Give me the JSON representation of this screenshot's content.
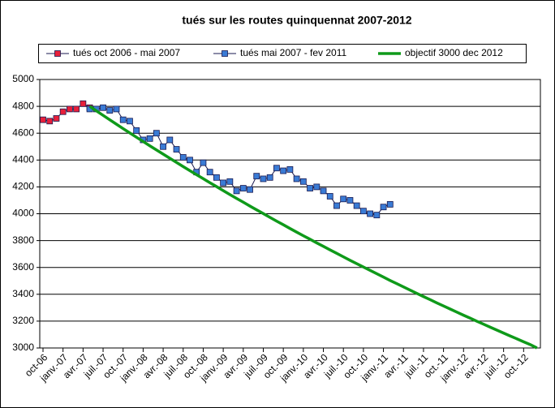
{
  "chart_data": {
    "type": "line",
    "title": "tués sur les routes  quinquennat 2007-2012",
    "categories": [
      "oct-06",
      null,
      null,
      "janv.-07",
      null,
      null,
      "avr.-07",
      null,
      null,
      "juil.-07",
      null,
      null,
      "oct.-07",
      null,
      null,
      "janv.-08",
      null,
      null,
      "avr.-08",
      null,
      null,
      "juil.-08",
      null,
      null,
      "oct.-08",
      null,
      null,
      "janv.-09",
      null,
      null,
      "avr.-09",
      null,
      null,
      "juil.-09",
      null,
      null,
      "oct.-09",
      null,
      null,
      "janv.-10",
      null,
      null,
      "avr.-10",
      null,
      null,
      "juil.-10",
      null,
      null,
      "oct.-10",
      null,
      null,
      "janv.-11",
      null,
      null,
      "avr.-11",
      null,
      null,
      "juil.-11",
      null,
      null,
      "oct.-11",
      null,
      null,
      "janv.-12",
      null,
      null,
      "avr.-12",
      null,
      null,
      "juil.-12",
      null,
      null,
      "oct.-12",
      null,
      null
    ],
    "series": [
      {
        "name": "tués oct 2006 - mai 2007",
        "color": "#e8203a",
        "marker": "square",
        "values": [
          4700,
          4690,
          4710,
          4760,
          4780,
          4780,
          4820,
          4790,
          null,
          null,
          null,
          null,
          null,
          null,
          null,
          null,
          null,
          null,
          null,
          null,
          null,
          null,
          null,
          null,
          null,
          null,
          null,
          null,
          null,
          null,
          null,
          null,
          null,
          null,
          null,
          null,
          null,
          null,
          null,
          null,
          null,
          null,
          null,
          null,
          null,
          null,
          null,
          null,
          null,
          null,
          null,
          null,
          null,
          null,
          null,
          null,
          null,
          null,
          null,
          null,
          null,
          null,
          null,
          null,
          null,
          null,
          null,
          null,
          null,
          null,
          null,
          null,
          null,
          null,
          null
        ]
      },
      {
        "name": "tués mai 2007 - fev 2011",
        "color": "#3a7bd5",
        "marker": "square",
        "values": [
          null,
          null,
          null,
          null,
          null,
          null,
          null,
          4780,
          4780,
          4790,
          4770,
          4780,
          4700,
          4690,
          4620,
          4550,
          4560,
          4600,
          4500,
          4550,
          4480,
          4420,
          4400,
          4310,
          4380,
          4310,
          4270,
          4230,
          4240,
          4170,
          4190,
          4180,
          4280,
          4260,
          4270,
          4340,
          4320,
          4330,
          4260,
          4240,
          4190,
          4200,
          4170,
          4130,
          4060,
          4110,
          4100,
          4060,
          4020,
          4000,
          3990,
          4050,
          4070,
          null,
          null,
          null,
          null,
          null,
          null,
          null,
          null,
          null,
          null,
          null,
          null,
          null,
          null,
          null,
          null,
          null,
          null,
          null,
          null,
          null,
          null
        ]
      },
      {
        "name": "objectif 3000 dec 2012",
        "color": "#0f9a1a",
        "marker": "none",
        "values": [
          null,
          null,
          null,
          null,
          null,
          null,
          null,
          4800,
          4766,
          4733,
          4700,
          4667,
          4634,
          4602,
          4570,
          4538,
          4506,
          4475,
          4444,
          4413,
          4382,
          4351,
          4321,
          4291,
          4261,
          4231,
          4202,
          4172,
          4143,
          4114,
          4086,
          4057,
          4029,
          4001,
          3973,
          3945,
          3918,
          3890,
          3863,
          3836,
          3810,
          3783,
          3757,
          3731,
          3705,
          3679,
          3653,
          3628,
          3603,
          3578,
          3553,
          3528,
          3503,
          3479,
          3455,
          3431,
          3407,
          3383,
          3360,
          3336,
          3313,
          3290,
          3267,
          3244,
          3222,
          3199,
          3177,
          3155,
          3133,
          3111,
          3089,
          3068,
          3046,
          3025,
          3000
        ]
      }
    ],
    "ylim": [
      3000,
      5000
    ],
    "yticks": [
      3000,
      3200,
      3400,
      3600,
      3800,
      4000,
      4200,
      4400,
      4600,
      4800,
      5000
    ],
    "grid": true
  }
}
